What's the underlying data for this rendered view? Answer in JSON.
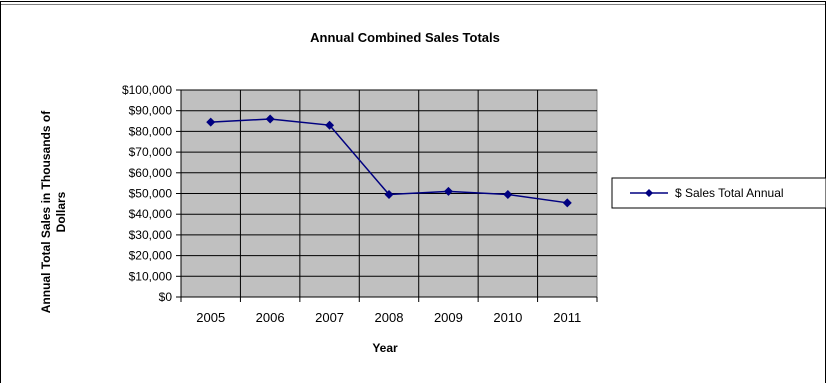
{
  "chart_data": {
    "type": "line",
    "title": "Annual Combined Sales Totals",
    "xlabel": "Year",
    "ylabel": [
      "Annual Total Sales in Thousands of",
      "Dollars"
    ],
    "categories": [
      "2005",
      "2006",
      "2007",
      "2008",
      "2009",
      "2010",
      "2011"
    ],
    "yticks": [
      "$0",
      "$10,000",
      "$20,000",
      "$30,000",
      "$40,000",
      "$50,000",
      "$60,000",
      "$70,000",
      "$80,000",
      "$90,000",
      "$100,000"
    ],
    "ylim": [
      0,
      100000
    ],
    "grid": true,
    "legend_position": "right",
    "series": [
      {
        "name": "$ Sales Total Annual",
        "values": [
          84500,
          86000,
          83000,
          49500,
          51000,
          49500,
          45500
        ],
        "color": "#000080",
        "marker": "diamond"
      }
    ],
    "plot_background": "#c0c0c0"
  }
}
